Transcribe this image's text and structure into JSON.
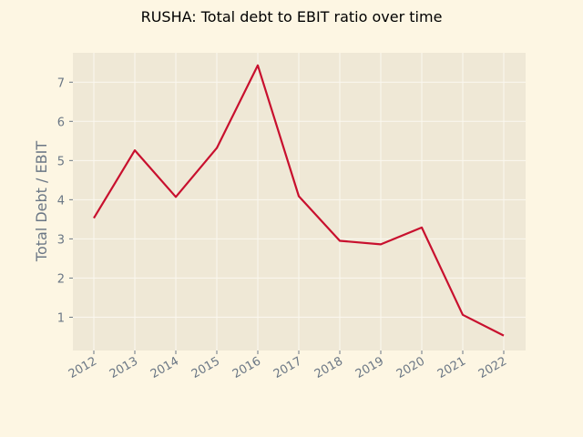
{
  "chart_data": {
    "type": "line",
    "title": "RUSHA: Total debt to EBIT ratio over time",
    "xlabel": "",
    "ylabel": "Total Debt / EBIT",
    "x": [
      "2012",
      "2013",
      "2014",
      "2015",
      "2016",
      "2017",
      "2018",
      "2019",
      "2020",
      "2021",
      "2022"
    ],
    "series": [
      {
        "values": [
          3.53,
          5.26,
          4.07,
          5.32,
          7.43,
          4.09,
          2.95,
          2.86,
          3.29,
          1.06,
          0.53
        ]
      }
    ],
    "yticks": [
      1,
      2,
      3,
      4,
      5,
      6,
      7
    ],
    "ylim": [
      0.15,
      7.75
    ],
    "grid": true,
    "colors": {
      "line": "#c8102e",
      "plot_background": "#efe8d6",
      "page_background": "#fdf6e3",
      "grid": "#fbf8f0",
      "axis_text": "#6b7785"
    }
  }
}
